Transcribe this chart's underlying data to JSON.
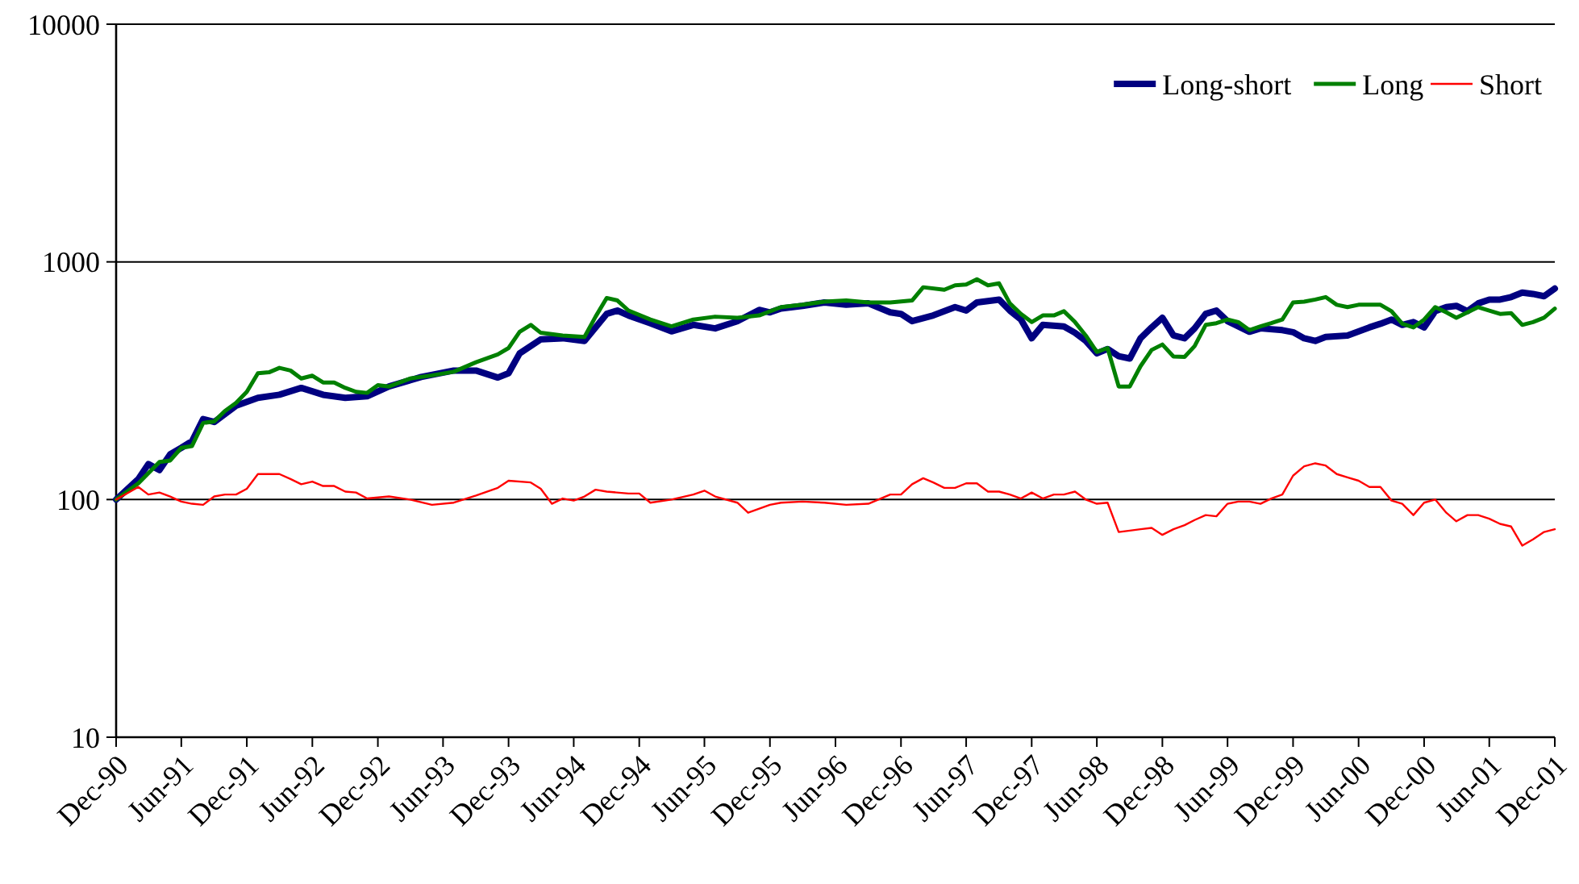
{
  "chart_data": {
    "type": "line",
    "log": true,
    "grid": "y",
    "legend": "top right",
    "marker": "none",
    "line_style": "solid",
    "xlim": [
      "1990-12",
      "2001-12"
    ],
    "xticks": [
      {
        "value": "1990-12",
        "label": "Dec-90"
      },
      {
        "value": "1991-06",
        "label": "Jun-91"
      },
      {
        "value": "1991-12",
        "label": "Dec-91"
      },
      {
        "value": "1992-06",
        "label": "Jun-92"
      },
      {
        "value": "1992-12",
        "label": "Dec-92"
      },
      {
        "value": "1993-06",
        "label": "Jun-93"
      },
      {
        "value": "1993-12",
        "label": "Dec-93"
      },
      {
        "value": "1994-06",
        "label": "Jun-94"
      },
      {
        "value": "1994-12",
        "label": "Dec-94"
      },
      {
        "value": "1995-06",
        "label": "Jun-95"
      },
      {
        "value": "1995-12",
        "label": "Dec-95"
      },
      {
        "value": "1996-06",
        "label": "Jun-96"
      },
      {
        "value": "1996-12",
        "label": "Dec-96"
      },
      {
        "value": "1997-06",
        "label": "Jun-97"
      },
      {
        "value": "1997-12",
        "label": "Dec-97"
      },
      {
        "value": "1998-06",
        "label": "Jun-98"
      },
      {
        "value": "1998-12",
        "label": "Dec-98"
      },
      {
        "value": "1999-06",
        "label": "Jun-99"
      },
      {
        "value": "1999-12",
        "label": "Dec-99"
      },
      {
        "value": "2000-06",
        "label": "Jun-00"
      },
      {
        "value": "2000-12",
        "label": "Dec-00"
      },
      {
        "value": "2001-06",
        "label": "Jun-01"
      },
      {
        "value": "2001-12",
        "label": "Dec-01"
      }
    ],
    "ylim": [
      10,
      10000
    ],
    "yticks": [
      10,
      100,
      1000,
      10000
    ],
    "series": [
      {
        "name": "Long-short",
        "color": "#000080",
        "x": [
          "1990-12",
          "1991-02",
          "1991-03",
          "1991-04",
          "1991-05",
          "1991-06",
          "1991-07",
          "1991-08",
          "1991-09",
          "1991-10",
          "1991-11",
          "1992-01",
          "1992-03",
          "1992-05",
          "1992-07",
          "1992-09",
          "1992-11",
          "1993-01",
          "1993-04",
          "1993-07",
          "1993-09",
          "1993-11",
          "1993-12",
          "1994-01",
          "1994-03",
          "1994-05",
          "1994-07",
          "1994-09",
          "1994-10",
          "1994-11",
          "1995-01",
          "1995-03",
          "1995-05",
          "1995-07",
          "1995-09",
          "1995-11",
          "1995-12",
          "1996-01",
          "1996-03",
          "1996-05",
          "1996-07",
          "1996-09",
          "1996-11",
          "1996-12",
          "1997-01",
          "1997-03",
          "1997-05",
          "1997-06",
          "1997-07",
          "1997-09",
          "1997-10",
          "1997-11",
          "1997-12",
          "1998-01",
          "1998-03",
          "1998-04",
          "1998-05",
          "1998-06",
          "1998-07",
          "1998-08",
          "1998-09",
          "1998-10",
          "1998-11",
          "1998-12",
          "1999-01",
          "1999-02",
          "1999-03",
          "1999-04",
          "1999-05",
          "1999-06",
          "1999-07",
          "1999-08",
          "1999-09",
          "1999-11",
          "1999-12",
          "2000-01",
          "2000-02",
          "2000-03",
          "2000-05",
          "2000-07",
          "2000-08",
          "2000-09",
          "2000-10",
          "2000-11",
          "2000-12",
          "2001-01",
          "2001-02",
          "2001-03",
          "2001-04",
          "2001-05",
          "2001-06",
          "2001-07",
          "2001-08",
          "2001-09",
          "2001-10",
          "2001-11",
          "2001-12"
        ],
        "values": [
          100,
          122,
          141,
          133,
          155,
          165,
          176,
          218,
          212,
          229,
          248,
          268,
          276,
          295,
          276,
          268,
          272,
          299,
          328,
          349,
          349,
          326,
          340,
          412,
          472,
          477,
          465,
          604,
          624,
          595,
          552,
          510,
          543,
          525,
          563,
          628,
          613,
          636,
          653,
          675,
          660,
          669,
          613,
          604,
          563,
          595,
          645,
          624,
          675,
          694,
          624,
          572,
          477,
          543,
          535,
          503,
          465,
          412,
          430,
          401,
          392,
          477,
          530,
          582,
          490,
          477,
          525,
          604,
          624,
          563,
          535,
          508,
          525,
          516,
          506,
          477,
          465,
          483,
          490,
          530,
          549,
          572,
          543,
          558,
          530,
          620,
          645,
          653,
          620,
          669,
          694,
          694,
          711,
          743,
          733,
          717,
          772
        ]
      },
      {
        "name": "Long",
        "color": "#008000",
        "x": [
          "1990-12",
          "1991-02",
          "1991-04",
          "1991-05",
          "1991-06",
          "1991-07",
          "1991-08",
          "1991-09",
          "1991-10",
          "1991-11",
          "1991-12",
          "1992-01",
          "1992-02",
          "1992-03",
          "1992-04",
          "1992-05",
          "1992-06",
          "1992-07",
          "1992-08",
          "1992-09",
          "1992-10",
          "1992-11",
          "1992-12",
          "1993-01",
          "1993-03",
          "1993-05",
          "1993-07",
          "1993-09",
          "1993-11",
          "1993-12",
          "1994-01",
          "1994-02",
          "1994-03",
          "1994-05",
          "1994-07",
          "1994-08",
          "1994-09",
          "1994-10",
          "1994-11",
          "1995-01",
          "1995-03",
          "1995-05",
          "1995-07",
          "1995-09",
          "1995-11",
          "1996-01",
          "1996-03",
          "1996-05",
          "1996-07",
          "1996-09",
          "1996-11",
          "1997-01",
          "1997-02",
          "1997-04",
          "1997-05",
          "1997-06",
          "1997-07",
          "1997-08",
          "1997-09",
          "1997-10",
          "1997-11",
          "1997-12",
          "1998-01",
          "1998-02",
          "1998-03",
          "1998-04",
          "1998-05",
          "1998-06",
          "1998-07",
          "1998-08",
          "1998-09",
          "1998-10",
          "1998-11",
          "1998-12",
          "1999-01",
          "1999-02",
          "1999-03",
          "1999-04",
          "1999-05",
          "1999-06",
          "1999-07",
          "1999-08",
          "1999-09",
          "1999-10",
          "1999-11",
          "1999-12",
          "2000-01",
          "2000-02",
          "2000-03",
          "2000-04",
          "2000-05",
          "2000-06",
          "2000-07",
          "2000-08",
          "2000-09",
          "2000-10",
          "2000-11",
          "2000-12",
          "2001-01",
          "2001-02",
          "2001-03",
          "2001-04",
          "2001-05",
          "2001-06",
          "2001-07",
          "2001-08",
          "2001-09",
          "2001-10",
          "2001-11",
          "2001-12"
        ],
        "values": [
          100,
          117,
          144,
          146,
          165,
          168,
          210,
          213,
          236,
          255,
          284,
          340,
          343,
          358,
          349,
          323,
          332,
          311,
          311,
          295,
          284,
          281,
          303,
          299,
          323,
          333,
          345,
          378,
          408,
          434,
          508,
          543,
          503,
          490,
          483,
          588,
          705,
          688,
          624,
          572,
          535,
          572,
          588,
          582,
          595,
          645,
          660,
          680,
          688,
          675,
          675,
          688,
          782,
          763,
          797,
          803,
          845,
          797,
          812,
          669,
          604,
          558,
          595,
          595,
          620,
          558,
          490,
          418,
          434,
          299,
          299,
          364,
          426,
          449,
          400,
          398,
          442,
          543,
          552,
          572,
          558,
          516,
          535,
          552,
          572,
          675,
          680,
          694,
          711,
          660,
          645,
          660,
          660,
          660,
          620,
          549,
          530,
          572,
          645,
          613,
          582,
          613,
          645,
          624,
          604,
          608,
          543,
          558,
          582,
          636
        ]
      },
      {
        "name": "Short",
        "color": "#ff0000",
        "x": [
          "1990-12",
          "1991-02",
          "1991-03",
          "1991-04",
          "1991-05",
          "1991-06",
          "1991-07",
          "1991-08",
          "1991-09",
          "1991-10",
          "1991-11",
          "1991-12",
          "1992-01",
          "1992-03",
          "1992-04",
          "1992-05",
          "1992-06",
          "1992-07",
          "1992-08",
          "1992-09",
          "1992-10",
          "1992-11",
          "1993-01",
          "1993-03",
          "1993-05",
          "1993-07",
          "1993-09",
          "1993-11",
          "1993-12",
          "1994-02",
          "1994-03",
          "1994-04",
          "1994-05",
          "1994-06",
          "1994-07",
          "1994-08",
          "1994-09",
          "1994-11",
          "1994-12",
          "1995-01",
          "1995-03",
          "1995-05",
          "1995-06",
          "1995-07",
          "1995-09",
          "1995-10",
          "1995-12",
          "1996-01",
          "1996-03",
          "1996-05",
          "1996-07",
          "1996-09",
          "1996-11",
          "1996-12",
          "1997-01",
          "1997-02",
          "1997-03",
          "1997-04",
          "1997-05",
          "1997-06",
          "1997-07",
          "1997-08",
          "1997-09",
          "1997-10",
          "1997-11",
          "1997-12",
          "1998-01",
          "1998-02",
          "1998-03",
          "1998-04",
          "1998-05",
          "1998-06",
          "1998-07",
          "1998-08",
          "1998-09",
          "1998-10",
          "1998-11",
          "1998-12",
          "1999-01",
          "1999-02",
          "1999-03",
          "1999-04",
          "1999-05",
          "1999-06",
          "1999-07",
          "1999-08",
          "1999-09",
          "1999-10",
          "1999-11",
          "1999-12",
          "2000-01",
          "2000-02",
          "2000-03",
          "2000-04",
          "2000-05",
          "2000-06",
          "2000-07",
          "2000-08",
          "2000-09",
          "2000-10",
          "2000-11",
          "2000-12",
          "2001-01",
          "2001-02",
          "2001-03",
          "2001-04",
          "2001-05",
          "2001-06",
          "2001-07",
          "2001-08",
          "2001-09",
          "2001-10",
          "2001-11",
          "2001-12"
        ],
        "values": [
          100,
          113,
          105,
          107,
          103,
          98,
          96,
          95,
          103,
          105,
          105,
          111,
          128,
          128,
          122,
          116,
          119,
          114,
          114,
          108,
          107,
          101,
          103,
          100,
          95,
          97,
          104,
          112,
          120,
          118,
          111,
          96,
          101,
          99,
          103,
          110,
          108,
          106,
          106,
          97,
          100,
          105,
          109,
          103,
          97,
          88,
          95,
          97,
          98,
          97,
          95,
          96,
          105,
          105,
          116,
          123,
          118,
          112,
          112,
          117,
          117,
          108,
          108,
          105,
          101,
          107,
          101,
          105,
          105,
          108,
          100,
          96,
          97,
          73,
          74,
          75,
          76,
          71,
          75,
          78,
          82,
          86,
          85,
          96,
          98,
          98,
          96,
          101,
          105,
          126,
          138,
          142,
          139,
          128,
          124,
          120,
          113,
          113,
          99,
          96,
          86,
          97,
          100,
          88,
          81,
          86,
          86,
          83,
          79,
          77,
          64,
          68,
          73,
          75
        ]
      }
    ]
  }
}
